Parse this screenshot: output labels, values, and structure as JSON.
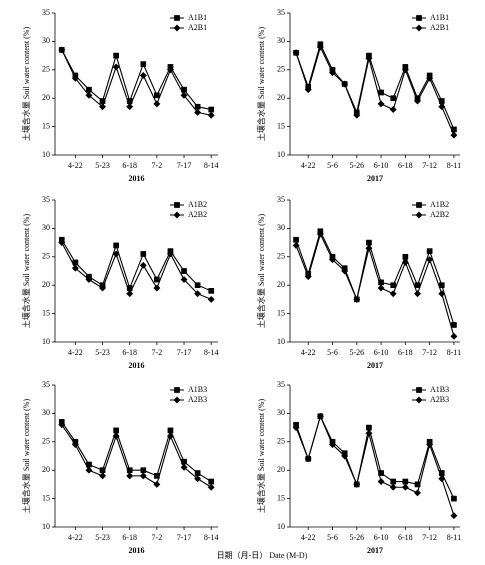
{
  "footer": "日期（月-日） Date (M-D)",
  "chart_data": [
    {
      "type": "line",
      "xlabel": "2016",
      "ylabel": "土壤含水量 Soil water content (%)",
      "categories": [
        null,
        "4-22",
        null,
        "5-23",
        null,
        "6-18",
        null,
        "7-2",
        null,
        "7-17",
        null,
        "8-14"
      ],
      "ylim": [
        10,
        35
      ],
      "yticks": [
        10,
        15,
        20,
        25,
        30,
        35
      ],
      "legend": "upper-right",
      "series": [
        {
          "name": "A1B1",
          "color": "#000000",
          "marker": "square",
          "values": [
            28.5,
            24,
            21.5,
            19.5,
            27.5,
            19.5,
            26,
            20.5,
            25.5,
            21.5,
            18.5,
            18
          ]
        },
        {
          "name": "A2B1",
          "color": "#000000",
          "marker": "diamond",
          "values": [
            28.5,
            23.5,
            20.5,
            18.5,
            25.5,
            18.5,
            24,
            19,
            25,
            20.5,
            17.5,
            17
          ]
        }
      ]
    },
    {
      "type": "line",
      "xlabel": "2017",
      "ylabel": "土壤含水量 Soil water content (%)",
      "categories": [
        null,
        "4-22",
        null,
        "5-6",
        null,
        "5-26",
        null,
        "6-10",
        null,
        "6-18",
        null,
        "7-12",
        null,
        "8-11"
      ],
      "ylim": [
        10,
        35
      ],
      "yticks": [
        10,
        15,
        20,
        25,
        30,
        35
      ],
      "legend": "upper-right",
      "series": [
        {
          "name": "A1B1",
          "color": "#000000",
          "marker": "square",
          "values": [
            28,
            22,
            29.5,
            25,
            22.5,
            17.5,
            27.5,
            21,
            20,
            25.5,
            20,
            24,
            19.5,
            14.5
          ]
        },
        {
          "name": "A2B1",
          "color": "#000000",
          "marker": "diamond",
          "values": [
            28,
            21.5,
            29,
            24.5,
            22.5,
            17,
            27,
            19,
            18,
            25,
            19.5,
            23.5,
            18.5,
            13.5
          ]
        }
      ]
    },
    {
      "type": "line",
      "xlabel": "2016",
      "ylabel": "土壤含水量 Soil water content (%)",
      "categories": [
        null,
        "4-22",
        null,
        "5-23",
        null,
        "6-18",
        null,
        "7-2",
        null,
        "7-17",
        null,
        "8-14"
      ],
      "ylim": [
        10,
        35
      ],
      "yticks": [
        10,
        15,
        20,
        25,
        30,
        35
      ],
      "legend": "upper-right",
      "series": [
        {
          "name": "A1B2",
          "color": "#000000",
          "marker": "square",
          "values": [
            28,
            24,
            21.5,
            20,
            27,
            19.5,
            25.5,
            21,
            26,
            22.5,
            20,
            19
          ]
        },
        {
          "name": "A2B2",
          "color": "#000000",
          "marker": "diamond",
          "values": [
            27.5,
            23,
            21,
            19.5,
            25.5,
            18.5,
            23.5,
            19.5,
            25.5,
            21,
            18.5,
            17.5
          ]
        }
      ]
    },
    {
      "type": "line",
      "xlabel": "2017",
      "ylabel": "土壤含水量 Soil water content (%)",
      "categories": [
        null,
        "4-22",
        null,
        "5-6",
        null,
        "5-26",
        null,
        "6-10",
        null,
        "6-18",
        null,
        "7-12",
        null,
        "8-11"
      ],
      "ylim": [
        10,
        35
      ],
      "yticks": [
        10,
        15,
        20,
        25,
        30,
        35
      ],
      "legend": "upper-right",
      "series": [
        {
          "name": "A1B2",
          "color": "#000000",
          "marker": "square",
          "values": [
            28,
            22,
            29.5,
            25,
            23,
            17.5,
            27.5,
            20.5,
            20,
            25,
            20,
            26,
            20,
            13
          ]
        },
        {
          "name": "A2B2",
          "color": "#000000",
          "marker": "diamond",
          "values": [
            27,
            21.5,
            29,
            24.5,
            22.5,
            17.5,
            26.5,
            19.5,
            18.5,
            24,
            18.5,
            24.5,
            18.5,
            11
          ]
        }
      ]
    },
    {
      "type": "line",
      "xlabel": "2016",
      "ylabel": "土壤含水量 Soil water content (%)",
      "categories": [
        null,
        "4-22",
        null,
        "5-23",
        null,
        "6-18",
        null,
        "7-2",
        null,
        "7-17",
        null,
        "8-14"
      ],
      "ylim": [
        10,
        35
      ],
      "yticks": [
        10,
        15,
        20,
        25,
        30,
        35
      ],
      "legend": "upper-right",
      "series": [
        {
          "name": "A1B3",
          "color": "#000000",
          "marker": "square",
          "values": [
            28.5,
            25,
            21,
            20,
            27,
            20,
            20,
            19,
            27,
            21.5,
            19.5,
            18
          ]
        },
        {
          "name": "A2B3",
          "color": "#000000",
          "marker": "diamond",
          "values": [
            28,
            24.5,
            20,
            19,
            26,
            19,
            19,
            17.5,
            26,
            20.5,
            18.5,
            17
          ]
        }
      ]
    },
    {
      "type": "line",
      "xlabel": "2017",
      "ylabel": "土壤含水量 Soil water content (%)",
      "categories": [
        null,
        "4-22",
        null,
        "5-6",
        null,
        "5-26",
        null,
        "6-10",
        null,
        "6-18",
        null,
        "7-12",
        null,
        "8-11"
      ],
      "ylim": [
        10,
        35
      ],
      "yticks": [
        10,
        15,
        20,
        25,
        30,
        35
      ],
      "legend": "upper-right",
      "series": [
        {
          "name": "A1B3",
          "color": "#000000",
          "marker": "square",
          "values": [
            28,
            22,
            29.5,
            25,
            23,
            17.5,
            27.5,
            19.5,
            18,
            18,
            17.5,
            25,
            19.5,
            15
          ]
        },
        {
          "name": "A2B3",
          "color": "#000000",
          "marker": "diamond",
          "values": [
            27.5,
            22,
            29.5,
            24.5,
            22.5,
            17.5,
            26.5,
            18,
            17,
            17,
            16,
            24.5,
            18.5,
            12
          ]
        }
      ]
    }
  ]
}
